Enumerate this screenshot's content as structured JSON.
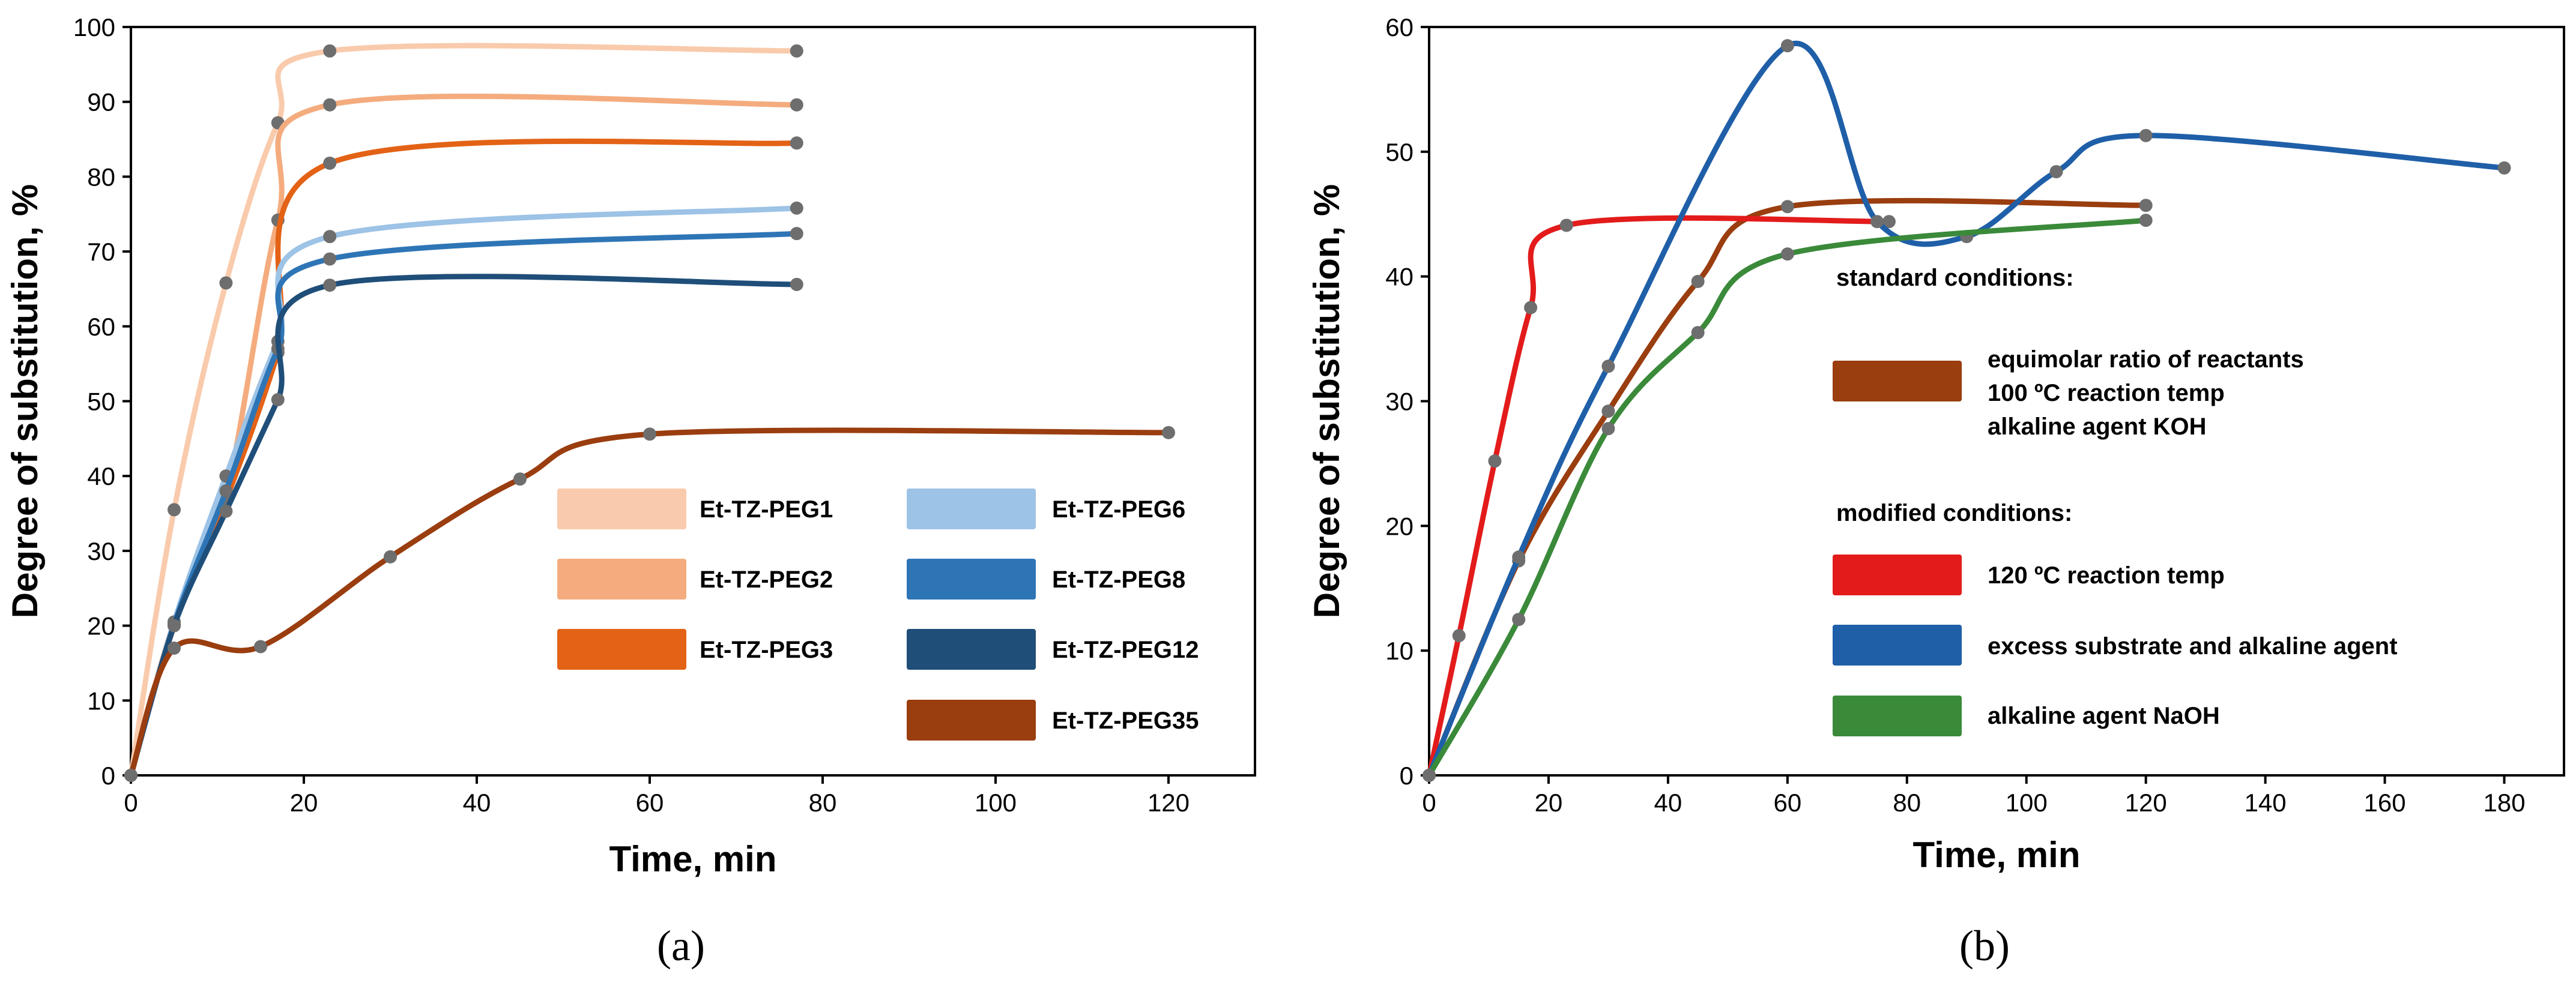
{
  "chart_data": [
    {
      "type": "line",
      "panel_label": "(a)",
      "xlabel": "Time, min",
      "ylabel": "Degree of substitution, %",
      "xlim": [
        0,
        130
      ],
      "ylim": [
        0,
        100
      ],
      "xticks": [
        0,
        20,
        40,
        60,
        80,
        100,
        120
      ],
      "yticks": [
        0,
        10,
        20,
        30,
        40,
        50,
        60,
        70,
        80,
        90,
        100
      ],
      "legend_placement": "center-right",
      "series": [
        {
          "name": "Et-TZ-PEG1",
          "color": "#f9cbac",
          "x": [
            0,
            5,
            11,
            17,
            23,
            77
          ],
          "y": [
            0,
            35.5,
            65.8,
            87.2,
            96.8,
            96.8
          ]
        },
        {
          "name": "Et-TZ-PEG2",
          "color": "#f4ac7e",
          "x": [
            0,
            5,
            11,
            17,
            23,
            77
          ],
          "y": [
            0,
            20.5,
            37.5,
            74.2,
            89.6,
            89.6
          ]
        },
        {
          "name": "Et-TZ-PEG3",
          "color": "#e36216",
          "x": [
            0,
            5,
            11,
            17,
            23,
            77
          ],
          "y": [
            0,
            20,
            36.8,
            56.5,
            81.8,
            84.5
          ]
        },
        {
          "name": "Et-TZ-PEG6",
          "color": "#9dc3e6",
          "x": [
            0,
            5,
            11,
            17,
            23,
            77
          ],
          "y": [
            0,
            20.5,
            40,
            58,
            72,
            75.8
          ]
        },
        {
          "name": "Et-TZ-PEG8",
          "color": "#2e75b6",
          "x": [
            0,
            5,
            11,
            17,
            23,
            77
          ],
          "y": [
            0,
            20.2,
            38,
            57,
            69,
            72.4
          ]
        },
        {
          "name": "Et-TZ-PEG12",
          "color": "#1f4e79",
          "x": [
            0,
            5,
            11,
            17,
            23,
            77
          ],
          "y": [
            0,
            20,
            35.3,
            50.2,
            65.5,
            65.6
          ]
        },
        {
          "name": "Et-TZ-PEG35",
          "color": "#9a3d0f",
          "x": [
            0,
            5,
            15,
            30,
            45,
            60,
            120
          ],
          "y": [
            0,
            17,
            17.2,
            29.2,
            39.6,
            45.6,
            45.8
          ]
        }
      ]
    },
    {
      "type": "line",
      "panel_label": "(b)",
      "xlabel": "Time, min",
      "ylabel": "Degree of substitution, %",
      "xlim": [
        0,
        190
      ],
      "ylim": [
        0,
        60
      ],
      "xticks": [
        0,
        20,
        40,
        60,
        80,
        100,
        120,
        140,
        160,
        180
      ],
      "yticks": [
        0,
        10,
        20,
        30,
        40,
        50,
        60
      ],
      "legend_placement": "center-right",
      "legend_headings": [
        "standard conditions:",
        "modified conditions:"
      ],
      "series": [
        {
          "legend_lines": [
            "equimolar ratio of reactants",
            "100 ºC reaction temp",
            "alkaline agent KOH"
          ],
          "color": "#9a3d0f",
          "x": [
            0,
            15,
            30,
            45,
            60,
            120
          ],
          "y": [
            0,
            17.2,
            29.2,
            39.6,
            45.6,
            45.7
          ]
        },
        {
          "legend_lines": [
            "120 ºC reaction temp"
          ],
          "color": "#e31b1b",
          "x": [
            0,
            5,
            11,
            17,
            23,
            77
          ],
          "y": [
            0,
            11.2,
            25.2,
            37.5,
            44.1,
            44.4
          ]
        },
        {
          "legend_lines": [
            "excess substrate and alkaline agent"
          ],
          "color": "#1f5fa8",
          "x": [
            0,
            15,
            30,
            60,
            75,
            90,
            105,
            120,
            180
          ],
          "y": [
            0,
            17.5,
            32.8,
            58.5,
            44.4,
            43.2,
            48.4,
            51.3,
            48.7
          ]
        },
        {
          "legend_lines": [
            "alkaline agent NaOH"
          ],
          "color": "#3a8a3a",
          "x": [
            0,
            15,
            30,
            45,
            60,
            120
          ],
          "y": [
            0,
            12.5,
            27.8,
            35.5,
            41.8,
            44.5
          ]
        }
      ]
    }
  ]
}
